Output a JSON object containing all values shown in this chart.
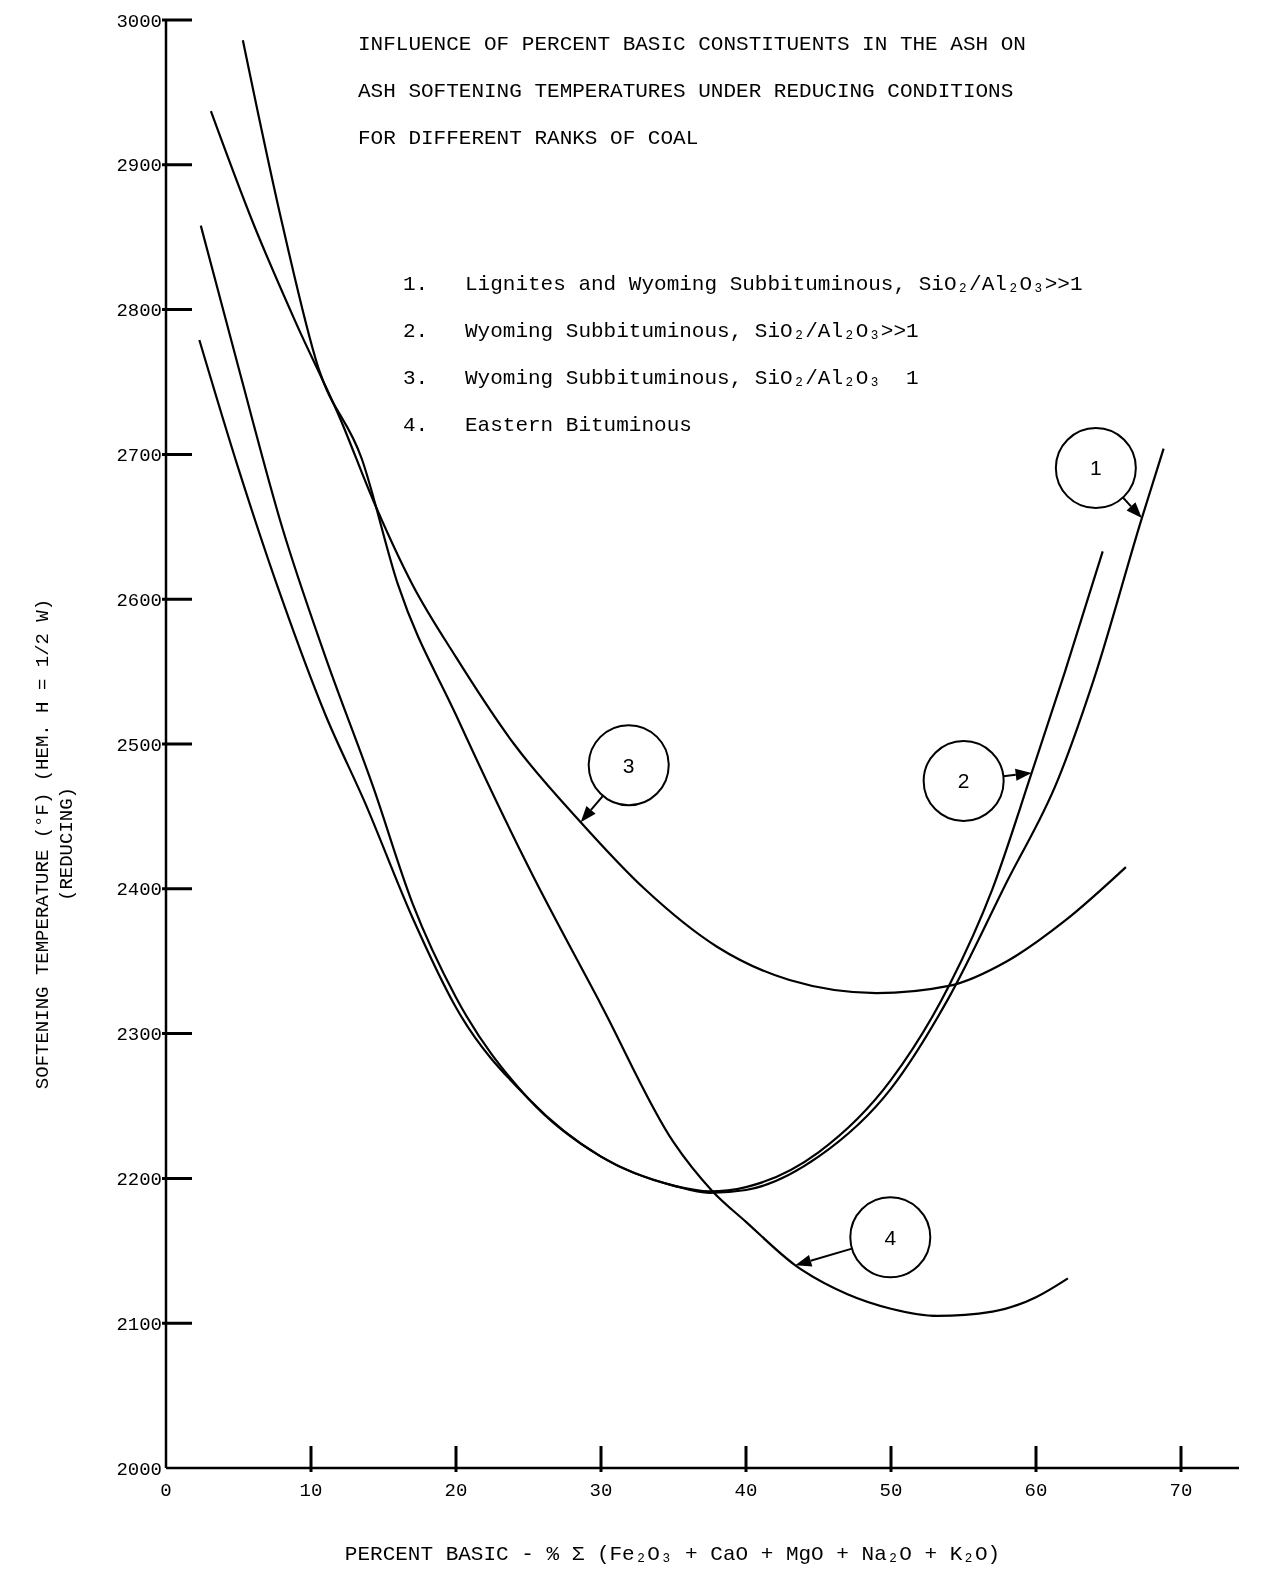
{
  "chart_data": {
    "type": "line",
    "title": "INFLUENCE OF PERCENT BASIC CONSTITUENTS IN THE ASH ON\nASH SOFTENING TEMPERATURES UNDER REDUCING CONDITIONS\nFOR DIFFERENT RANKS OF COAL",
    "xlabel": "PERCENT BASIC - % Σ (Fe₂O₃ + CaO + MgO + Na₂O + K₂O)",
    "ylabel": "SOFTENING TEMPERATURE (°F) (HEM. H = 1/2 W)\n(REDUCING)",
    "xlim": [
      0,
      74
    ],
    "xticks": [
      0,
      10,
      20,
      30,
      40,
      50,
      60,
      70
    ],
    "ylim": [
      2000,
      3000
    ],
    "yticks": [
      2000,
      2100,
      2200,
      2300,
      2400,
      2500,
      2600,
      2700,
      2800,
      2900,
      3000
    ],
    "grid": false,
    "marker": "none",
    "line_style": "solid",
    "series": [
      {
        "name": "1",
        "color": "#000000",
        "x": [
          2.3,
          5,
          8,
          11,
          13.7,
          17,
          20,
          25,
          30,
          35,
          37.5,
          40,
          45,
          50,
          54,
          58,
          61.5,
          64,
          67.3,
          68.8
        ],
        "values": [
          2779,
          2690,
          2600,
          2520,
          2460,
          2380,
          2318,
          2255,
          2215,
          2195,
          2190,
          2192,
          2215,
          2262,
          2325,
          2405,
          2475,
          2545,
          2656,
          2704
        ]
      },
      {
        "name": "2",
        "color": "#000000",
        "x": [
          2.4,
          5,
          8,
          11,
          14.3,
          17,
          20,
          25,
          30,
          35,
          37.5,
          40,
          45,
          50,
          54,
          57,
          59.7,
          62,
          64.6
        ],
        "values": [
          2858,
          2760,
          2650,
          2560,
          2470,
          2390,
          2325,
          2255,
          2215,
          2195,
          2191,
          2194,
          2218,
          2268,
          2333,
          2400,
          2480,
          2550,
          2633
        ]
      },
      {
        "name": "3",
        "color": "#000000",
        "x": [
          3.1,
          6,
          9,
          12,
          14.3,
          17,
          20,
          24,
          28.6,
          33,
          38,
          43,
          49,
          54,
          58,
          62,
          66.2
        ],
        "values": [
          2937,
          2860,
          2790,
          2725,
          2668,
          2610,
          2560,
          2500,
          2446,
          2400,
          2360,
          2337,
          2328,
          2333,
          2350,
          2378,
          2415
        ]
      },
      {
        "name": "4",
        "color": "#000000",
        "x": [
          5.3,
          8,
          10.5,
          13.5,
          16,
          20,
          25,
          30,
          35,
          37.7,
          40,
          43.4,
          47,
          50,
          53.2,
          57,
          60,
          62.2
        ],
        "values": [
          2986,
          2860,
          2760,
          2697,
          2610,
          2520,
          2415,
          2320,
          2225,
          2191,
          2170,
          2140,
          2120,
          2110,
          2105,
          2108,
          2118,
          2131
        ]
      }
    ],
    "annotations": [
      "1.  Lignites and Wyoming Subbituminous, SiO₂/Al₂O₃>>1",
      "2.  Wyoming Subbituminous, SiO₂/Al₂O₃>>1",
      "3.  Wyoming Subbituminous, SiO₂/Al₂O₃  1",
      "4.  Eastern Bituminous"
    ]
  }
}
